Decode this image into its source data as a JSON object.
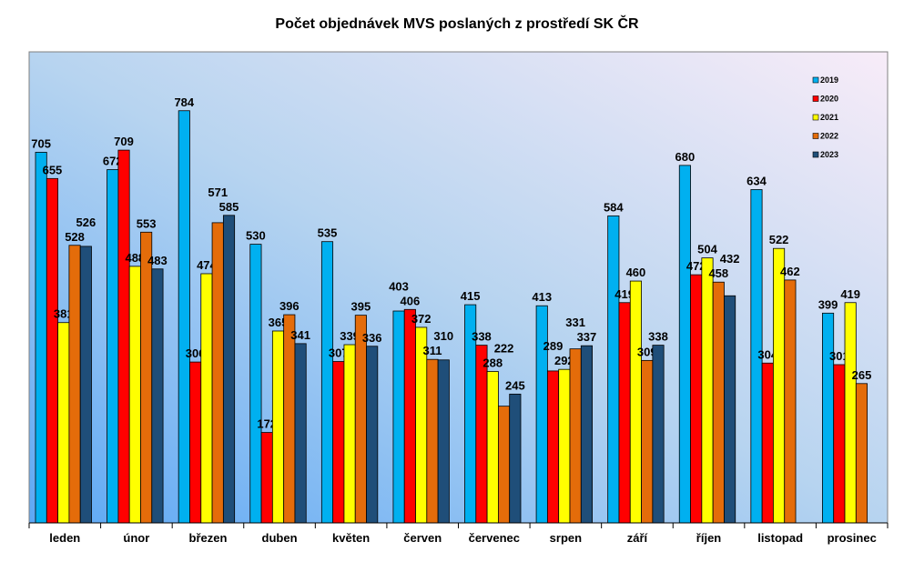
{
  "chart_data": {
    "type": "bar",
    "title": "Počet objednávek MVS poslaných z prostředí SK ČR",
    "xlabel": "",
    "ylabel": "",
    "ylim": [
      0,
      896
    ],
    "grid": false,
    "legend_position": "top-right",
    "categories": [
      "leden",
      "únor",
      "březen",
      "duben",
      "květen",
      "červen",
      "červenec",
      "srpen",
      "září",
      "říjen",
      "listopad",
      "prosinec"
    ],
    "series": [
      {
        "name": "2019",
        "color": "#00b0f0",
        "values": [
          705,
          672,
          784,
          530,
          535,
          403,
          415,
          413,
          584,
          680,
          634,
          399
        ]
      },
      {
        "name": "2020",
        "color": "#ff0000",
        "values": [
          655,
          709,
          306,
          172,
          307,
          406,
          338,
          289,
          419,
          472,
          304,
          301
        ]
      },
      {
        "name": "2021",
        "color": "#ffff00",
        "values": [
          381,
          488,
          474,
          365,
          339,
          372,
          288,
          292,
          460,
          504,
          522,
          419
        ]
      },
      {
        "name": "2022",
        "color": "#e46c0a",
        "values": [
          528,
          553,
          571,
          396,
          395,
          311,
          222,
          331,
          309,
          458,
          462,
          265
        ]
      },
      {
        "name": "2023",
        "color": "#1f4e79",
        "values": [
          526,
          483,
          585,
          341,
          336,
          310,
          245,
          337,
          338,
          432,
          null,
          null
        ]
      }
    ]
  }
}
